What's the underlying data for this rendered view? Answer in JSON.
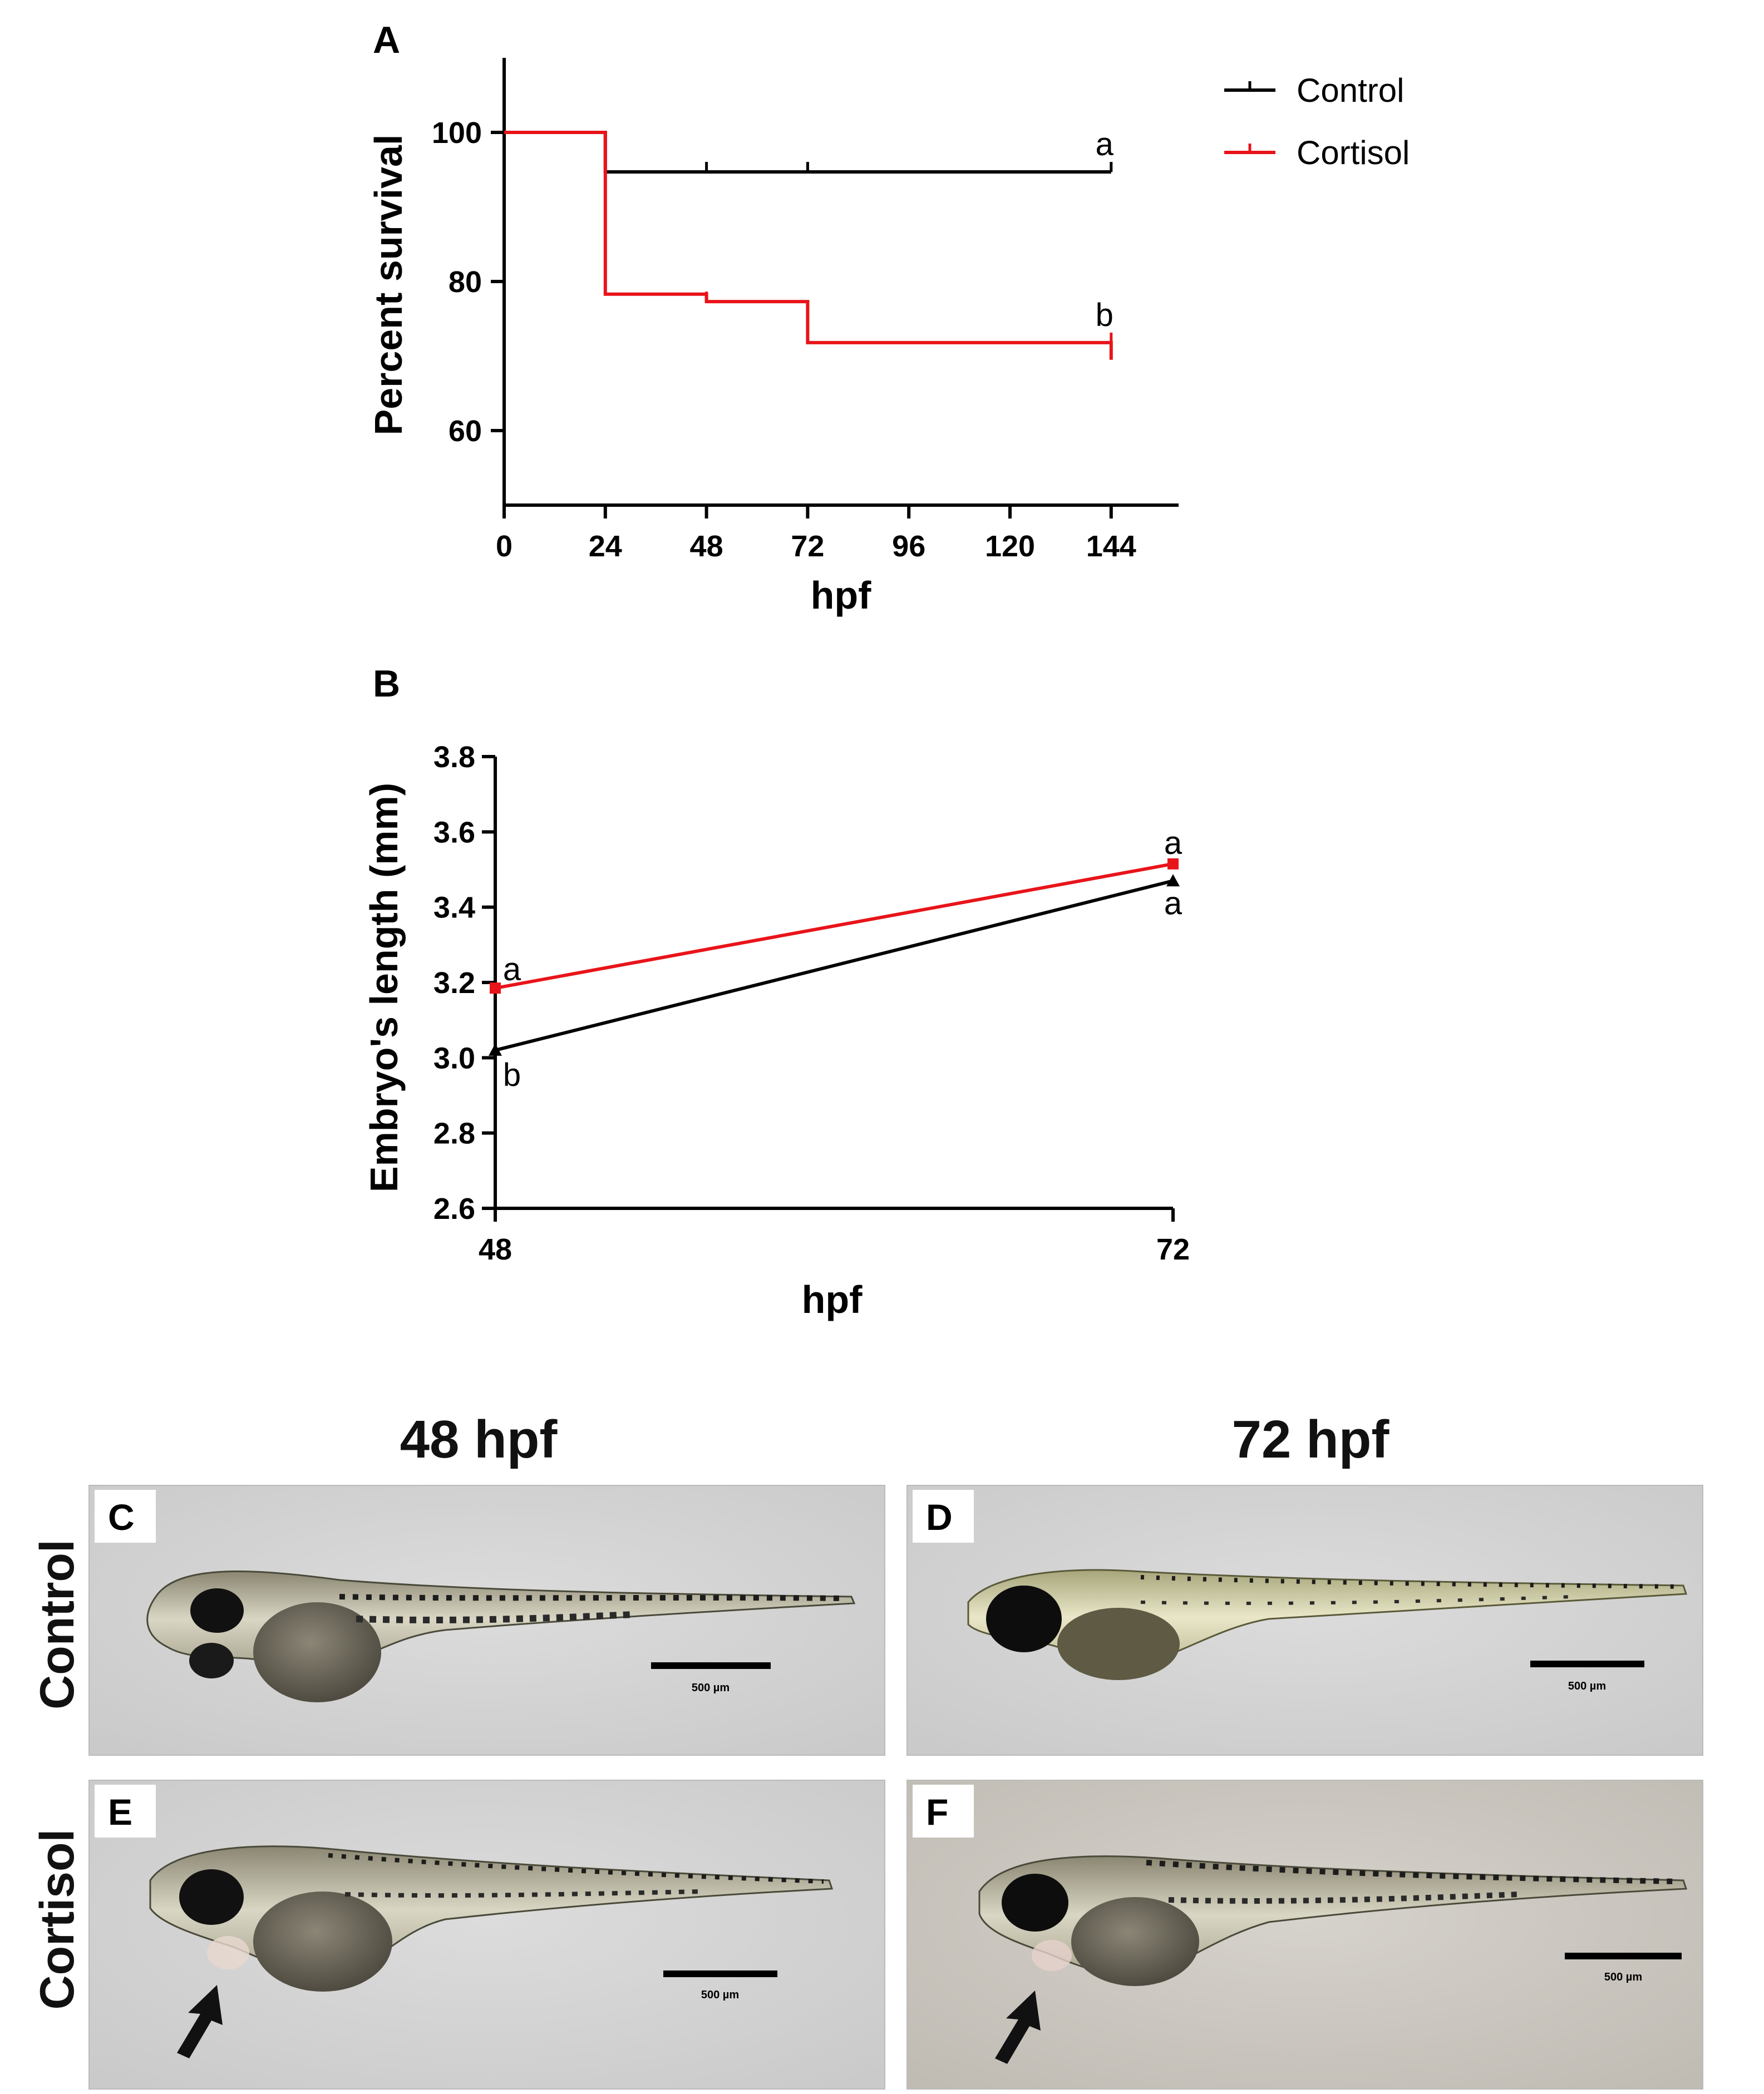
{
  "chart_data": [
    {
      "panel": "A",
      "type": "line",
      "subtype": "kaplan-meier step",
      "xlabel": "hpf",
      "ylabel": "Percent survival",
      "xlim": [
        0,
        160
      ],
      "ylim": [
        50,
        110
      ],
      "xticks": [
        0,
        24,
        48,
        72,
        96,
        120,
        144
      ],
      "yticks": [
        60,
        80,
        100
      ],
      "series": [
        {
          "name": "Control",
          "color": "#000000",
          "x": [
            0,
            24,
            48,
            72,
            144
          ],
          "values": [
            100,
            94.7,
            94.7,
            94.7,
            94.7
          ],
          "censor_x": [
            48,
            72,
            144
          ],
          "end_drop": 0,
          "annotation": "a"
        },
        {
          "name": "Cortisol",
          "color": "#e8141a",
          "x": [
            0,
            24,
            48,
            72,
            144
          ],
          "values": [
            100,
            78.3,
            77.3,
            71.8,
            71.8
          ],
          "censor_x": [
            48,
            144
          ],
          "end_drop": 69.5,
          "annotation": "b"
        }
      ],
      "legend": {
        "position": "top-right",
        "entries": [
          "Control",
          "Cortisol"
        ]
      }
    },
    {
      "panel": "B",
      "type": "line",
      "xlabel": "hpf",
      "ylabel": "Embryo's length (mm)",
      "categories": [
        48,
        72
      ],
      "ylim": [
        2.6,
        3.8
      ],
      "yticks": [
        2.6,
        2.8,
        3.0,
        3.2,
        3.4,
        3.6,
        3.8
      ],
      "ytick_labels": [
        "2.6",
        "2.8",
        "3.0",
        "3.2",
        "3.4",
        "3.6",
        "3.8"
      ],
      "series": [
        {
          "name": "Control",
          "color": "#000000",
          "values": [
            3.02,
            3.47
          ],
          "annotations": [
            "b",
            "a"
          ]
        },
        {
          "name": "Cortisol",
          "color": "#e8141a",
          "values": [
            3.185,
            3.515
          ],
          "annotations": [
            "a",
            "a"
          ]
        }
      ]
    }
  ],
  "photos": {
    "col_titles": [
      "48 hpf",
      "72 hpf"
    ],
    "row_labels": [
      "Control",
      "Cortisol"
    ],
    "panels": [
      {
        "letter": "C",
        "scale": "500 µm"
      },
      {
        "letter": "D",
        "scale": "500 µm"
      },
      {
        "letter": "E",
        "scale": "500 µm"
      },
      {
        "letter": "F",
        "scale": "500 µm"
      }
    ]
  }
}
